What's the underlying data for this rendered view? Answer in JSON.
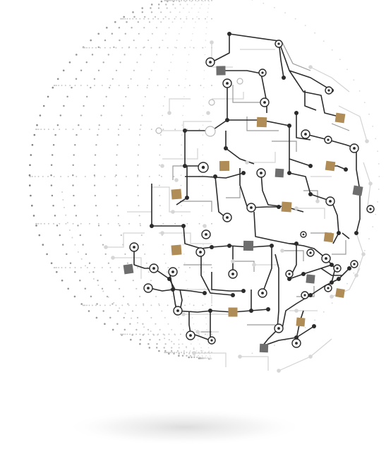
{
  "illustration": {
    "subject": "circuit-board-globe",
    "colors": {
      "background": "#ffffff",
      "dark_trace": "#2b2b2b",
      "mid_trace": "#9a9a9a",
      "light_trace": "#d6d6d6",
      "dot_light": "#c8c8c8",
      "gold_chip": "#b08d57",
      "gray_chip": "#6e6e6e",
      "shadow": "#e2e2e2"
    }
  }
}
